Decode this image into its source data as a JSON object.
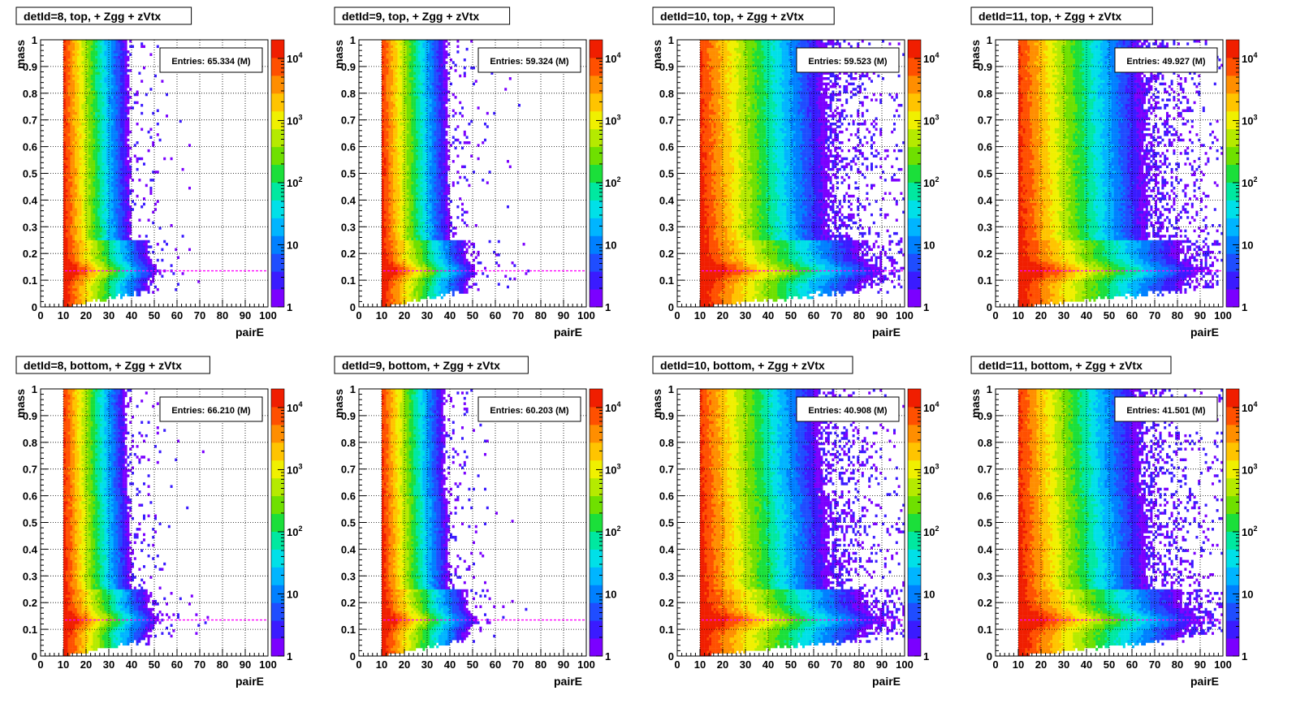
{
  "chart_data": [
    {
      "type": "heatmap",
      "title": "detId=8, top, + Zgg + zVtx",
      "xlabel": "pairE",
      "ylabel": "mass",
      "xlim": [
        0,
        100
      ],
      "ylim": [
        0,
        1
      ],
      "x_ticks": [
        "0",
        "10",
        "20",
        "30",
        "40",
        "50",
        "60",
        "70",
        "80",
        "90",
        "100"
      ],
      "y_ticks": [
        "0",
        "0.1",
        "0.2",
        "0.3",
        "0.4",
        "0.5",
        "0.6",
        "0.7",
        "0.8",
        "0.9",
        "1"
      ],
      "z_scale": "log",
      "z_ticks": [
        "1",
        "10",
        "10^2",
        "10^3",
        "10^4"
      ],
      "stats": "Entries: 65.334 (M)",
      "pi0_mass_line": 0.135,
      "x_cutoff": 10,
      "grid": true
    },
    {
      "type": "heatmap",
      "title": "detId=9, top, + Zgg + zVtx",
      "xlabel": "pairE",
      "ylabel": "mass",
      "xlim": [
        0,
        100
      ],
      "ylim": [
        0,
        1
      ],
      "x_ticks": [
        "0",
        "10",
        "20",
        "30",
        "40",
        "50",
        "60",
        "70",
        "80",
        "90",
        "100"
      ],
      "y_ticks": [
        "0",
        "0.1",
        "0.2",
        "0.3",
        "0.4",
        "0.5",
        "0.6",
        "0.7",
        "0.8",
        "0.9",
        "1"
      ],
      "z_scale": "log",
      "z_ticks": [
        "1",
        "10",
        "10^2",
        "10^3",
        "10^4"
      ],
      "stats": "Entries: 59.324 (M)",
      "pi0_mass_line": 0.135,
      "x_cutoff": 10,
      "grid": true
    },
    {
      "type": "heatmap",
      "title": "detId=10, top, + Zgg + zVtx",
      "xlabel": "pairE",
      "ylabel": "mass",
      "xlim": [
        0,
        100
      ],
      "ylim": [
        0,
        1
      ],
      "x_ticks": [
        "0",
        "10",
        "20",
        "30",
        "40",
        "50",
        "60",
        "70",
        "80",
        "90",
        "100"
      ],
      "y_ticks": [
        "0",
        "0.1",
        "0.2",
        "0.3",
        "0.4",
        "0.5",
        "0.6",
        "0.7",
        "0.8",
        "0.9",
        "1"
      ],
      "z_scale": "log",
      "z_ticks": [
        "1",
        "10",
        "10^2",
        "10^3",
        "10^4"
      ],
      "stats": "Entries: 59.523 (M)",
      "pi0_mass_line": 0.135,
      "x_cutoff": 10,
      "grid": true
    },
    {
      "type": "heatmap",
      "title": "detId=11, top, + Zgg + zVtx",
      "xlabel": "pairE",
      "ylabel": "mass",
      "xlim": [
        0,
        100
      ],
      "ylim": [
        0,
        1
      ],
      "x_ticks": [
        "0",
        "10",
        "20",
        "30",
        "40",
        "50",
        "60",
        "70",
        "80",
        "90",
        "100"
      ],
      "y_ticks": [
        "0",
        "0.1",
        "0.2",
        "0.3",
        "0.4",
        "0.5",
        "0.6",
        "0.7",
        "0.8",
        "0.9",
        "1"
      ],
      "z_scale": "log",
      "z_ticks": [
        "1",
        "10",
        "10^2",
        "10^3",
        "10^4"
      ],
      "stats": "Entries: 49.927 (M)",
      "pi0_mass_line": 0.135,
      "x_cutoff": 10,
      "grid": true
    },
    {
      "type": "heatmap",
      "title": "detId=8, bottom, + Zgg + zVtx",
      "xlabel": "pairE",
      "ylabel": "mass",
      "xlim": [
        0,
        100
      ],
      "ylim": [
        0,
        1
      ],
      "x_ticks": [
        "0",
        "10",
        "20",
        "30",
        "40",
        "50",
        "60",
        "70",
        "80",
        "90",
        "100"
      ],
      "y_ticks": [
        "0",
        "0.1",
        "0.2",
        "0.3",
        "0.4",
        "0.5",
        "0.6",
        "0.7",
        "0.8",
        "0.9",
        "1"
      ],
      "z_scale": "log",
      "z_ticks": [
        "1",
        "10",
        "10^2",
        "10^3",
        "10^4"
      ],
      "stats": "Entries: 66.210 (M)",
      "pi0_mass_line": 0.135,
      "x_cutoff": 10,
      "grid": true
    },
    {
      "type": "heatmap",
      "title": "detId=9, bottom, + Zgg + zVtx",
      "xlabel": "pairE",
      "ylabel": "mass",
      "xlim": [
        0,
        100
      ],
      "ylim": [
        0,
        1
      ],
      "x_ticks": [
        "0",
        "10",
        "20",
        "30",
        "40",
        "50",
        "60",
        "70",
        "80",
        "90",
        "100"
      ],
      "y_ticks": [
        "0",
        "0.1",
        "0.2",
        "0.3",
        "0.4",
        "0.5",
        "0.6",
        "0.7",
        "0.8",
        "0.9",
        "1"
      ],
      "z_scale": "log",
      "z_ticks": [
        "1",
        "10",
        "10^2",
        "10^3",
        "10^4"
      ],
      "stats": "Entries: 60.203 (M)",
      "pi0_mass_line": 0.135,
      "x_cutoff": 10,
      "grid": true
    },
    {
      "type": "heatmap",
      "title": "detId=10, bottom, + Zgg + zVtx",
      "xlabel": "pairE",
      "ylabel": "mass",
      "xlim": [
        0,
        100
      ],
      "ylim": [
        0,
        1
      ],
      "x_ticks": [
        "0",
        "10",
        "20",
        "30",
        "40",
        "50",
        "60",
        "70",
        "80",
        "90",
        "100"
      ],
      "y_ticks": [
        "0",
        "0.1",
        "0.2",
        "0.3",
        "0.4",
        "0.5",
        "0.6",
        "0.7",
        "0.8",
        "0.9",
        "1"
      ],
      "z_scale": "log",
      "z_ticks": [
        "1",
        "10",
        "10^2",
        "10^3",
        "10^4"
      ],
      "stats": "Entries: 40.908 (M)",
      "pi0_mass_line": 0.135,
      "x_cutoff": 10,
      "grid": true
    },
    {
      "type": "heatmap",
      "title": "detId=11, bottom, + Zgg + zVtx",
      "xlabel": "pairE",
      "ylabel": "mass",
      "xlim": [
        0,
        100
      ],
      "ylim": [
        0,
        1
      ],
      "x_ticks": [
        "0",
        "10",
        "20",
        "30",
        "40",
        "50",
        "60",
        "70",
        "80",
        "90",
        "100"
      ],
      "y_ticks": [
        "0",
        "0.1",
        "0.2",
        "0.3",
        "0.4",
        "0.5",
        "0.6",
        "0.7",
        "0.8",
        "0.9",
        "1"
      ],
      "z_scale": "log",
      "z_ticks": [
        "1",
        "10",
        "10^2",
        "10^3",
        "10^4"
      ],
      "stats": "Entries: 41.501 (M)",
      "pi0_mass_line": 0.135,
      "x_cutoff": 10,
      "grid": true
    }
  ]
}
